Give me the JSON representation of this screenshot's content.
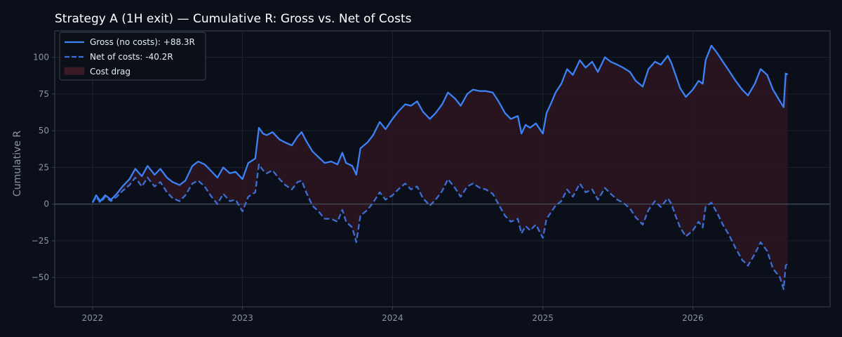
{
  "chart_data": {
    "type": "line",
    "title": "Strategy A (1H exit) — Cumulative R: Gross vs. Net of Costs",
    "xlabel": "",
    "ylabel": "Cumulative R",
    "xlim": [
      "2021-10-01",
      "2026-12-01"
    ],
    "ylim": [
      -70,
      118
    ],
    "grid": true,
    "legend_position": "top-left",
    "x_ticks": [
      "2022-01-01",
      "2023-01-01",
      "2024-01-01",
      "2025-01-01",
      "2026-01-01"
    ],
    "x_tick_labels": [
      "2022",
      "2023",
      "2024",
      "2025",
      "2026"
    ],
    "y_ticks": [
      -50,
      -25,
      0,
      25,
      50,
      75,
      100
    ],
    "y_tick_labels": [
      "−50",
      "−25",
      "0",
      "25",
      "50",
      "75",
      "100"
    ],
    "colors": {
      "background": "#0b0f19",
      "grid": "#1c2333",
      "axis": "#3d4450",
      "zero_line": "#4b5563",
      "gross": "#3b82f6",
      "net": "#3b6fd4",
      "fill": "#2a1520"
    },
    "legend": [
      {
        "key": "gross",
        "label": "Gross (no costs): +88.3R"
      },
      {
        "key": "net",
        "label": "Net of costs: -40.2R"
      },
      {
        "key": "fill",
        "label": "Cost drag"
      }
    ],
    "series": [
      {
        "key": "gross",
        "name": "Gross (no costs): +88.3R",
        "style": "solid",
        "points": [
          [
            "2022-01-01",
            1
          ],
          [
            "2022-01-10",
            6
          ],
          [
            "2022-01-20",
            2
          ],
          [
            "2022-02-01",
            6
          ],
          [
            "2022-02-15",
            3
          ],
          [
            "2022-03-01",
            7
          ],
          [
            "2022-03-15",
            12
          ],
          [
            "2022-04-01",
            17
          ],
          [
            "2022-04-15",
            24
          ],
          [
            "2022-05-01",
            19
          ],
          [
            "2022-05-15",
            26
          ],
          [
            "2022-06-01",
            20
          ],
          [
            "2022-06-15",
            24
          ],
          [
            "2022-07-01",
            18
          ],
          [
            "2022-07-15",
            15
          ],
          [
            "2022-08-01",
            13
          ],
          [
            "2022-08-15",
            16
          ],
          [
            "2022-09-01",
            26
          ],
          [
            "2022-09-15",
            29
          ],
          [
            "2022-10-01",
            27
          ],
          [
            "2022-10-15",
            23
          ],
          [
            "2022-11-01",
            18
          ],
          [
            "2022-11-15",
            25
          ],
          [
            "2022-12-01",
            21
          ],
          [
            "2022-12-15",
            22
          ],
          [
            "2023-01-01",
            17
          ],
          [
            "2023-01-15",
            28
          ],
          [
            "2023-02-01",
            31
          ],
          [
            "2023-02-10",
            52
          ],
          [
            "2023-02-20",
            48
          ],
          [
            "2023-03-01",
            47
          ],
          [
            "2023-03-15",
            49
          ],
          [
            "2023-04-01",
            44
          ],
          [
            "2023-04-15",
            42
          ],
          [
            "2023-05-01",
            40
          ],
          [
            "2023-05-15",
            46
          ],
          [
            "2023-05-25",
            49
          ],
          [
            "2023-06-05",
            43
          ],
          [
            "2023-06-20",
            36
          ],
          [
            "2023-07-05",
            32
          ],
          [
            "2023-07-20",
            28
          ],
          [
            "2023-08-05",
            29
          ],
          [
            "2023-08-20",
            27
          ],
          [
            "2023-09-01",
            35
          ],
          [
            "2023-09-10",
            28
          ],
          [
            "2023-09-25",
            26
          ],
          [
            "2023-10-05",
            20
          ],
          [
            "2023-10-15",
            38
          ],
          [
            "2023-11-01",
            42
          ],
          [
            "2023-11-15",
            47
          ],
          [
            "2023-12-01",
            56
          ],
          [
            "2023-12-15",
            51
          ],
          [
            "2024-01-01",
            58
          ],
          [
            "2024-01-15",
            63
          ],
          [
            "2024-02-01",
            68
          ],
          [
            "2024-02-15",
            67
          ],
          [
            "2024-03-01",
            70
          ],
          [
            "2024-03-15",
            63
          ],
          [
            "2024-04-01",
            58
          ],
          [
            "2024-04-15",
            62
          ],
          [
            "2024-05-01",
            68
          ],
          [
            "2024-05-15",
            76
          ],
          [
            "2024-06-01",
            72
          ],
          [
            "2024-06-15",
            67
          ],
          [
            "2024-07-01",
            75
          ],
          [
            "2024-07-15",
            78
          ],
          [
            "2024-08-01",
            77
          ],
          [
            "2024-08-15",
            77
          ],
          [
            "2024-09-01",
            76
          ],
          [
            "2024-09-15",
            70
          ],
          [
            "2024-10-01",
            62
          ],
          [
            "2024-10-15",
            58
          ],
          [
            "2024-11-01",
            60
          ],
          [
            "2024-11-10",
            48
          ],
          [
            "2024-11-20",
            54
          ],
          [
            "2024-12-01",
            52
          ],
          [
            "2024-12-15",
            55
          ],
          [
            "2025-01-01",
            48
          ],
          [
            "2025-01-10",
            62
          ],
          [
            "2025-01-20",
            68
          ],
          [
            "2025-02-01",
            76
          ],
          [
            "2025-02-15",
            82
          ],
          [
            "2025-03-01",
            92
          ],
          [
            "2025-03-15",
            88
          ],
          [
            "2025-04-01",
            98
          ],
          [
            "2025-04-15",
            93
          ],
          [
            "2025-05-01",
            97
          ],
          [
            "2025-05-15",
            90
          ],
          [
            "2025-06-01",
            100
          ],
          [
            "2025-06-15",
            97
          ],
          [
            "2025-07-01",
            95
          ],
          [
            "2025-07-15",
            93
          ],
          [
            "2025-08-01",
            90
          ],
          [
            "2025-08-15",
            84
          ],
          [
            "2025-09-01",
            80
          ],
          [
            "2025-09-15",
            92
          ],
          [
            "2025-10-01",
            97
          ],
          [
            "2025-10-15",
            95
          ],
          [
            "2025-11-01",
            101
          ],
          [
            "2025-11-10",
            96
          ],
          [
            "2025-11-20",
            88
          ],
          [
            "2025-12-01",
            79
          ],
          [
            "2025-12-15",
            73
          ],
          [
            "2026-01-01",
            78
          ],
          [
            "2026-01-15",
            84
          ],
          [
            "2026-01-25",
            82
          ],
          [
            "2026-02-01",
            98
          ],
          [
            "2026-02-15",
            108
          ],
          [
            "2026-03-01",
            103
          ],
          [
            "2026-03-15",
            97
          ],
          [
            "2026-04-01",
            90
          ],
          [
            "2026-04-15",
            84
          ],
          [
            "2026-05-01",
            78
          ],
          [
            "2026-05-15",
            74
          ],
          [
            "2026-06-01",
            82
          ],
          [
            "2026-06-15",
            92
          ],
          [
            "2026-07-01",
            88
          ],
          [
            "2026-07-15",
            78
          ],
          [
            "2026-08-01",
            70
          ],
          [
            "2026-08-10",
            66
          ],
          [
            "2026-08-15",
            89
          ],
          [
            "2026-08-20",
            88.3
          ]
        ]
      },
      {
        "key": "net",
        "name": "Net of costs: -40.2R",
        "style": "dashed",
        "points": [
          [
            "2022-01-01",
            1
          ],
          [
            "2022-01-10",
            5
          ],
          [
            "2022-01-20",
            1
          ],
          [
            "2022-02-01",
            5
          ],
          [
            "2022-02-15",
            2
          ],
          [
            "2022-03-01",
            5
          ],
          [
            "2022-03-15",
            9
          ],
          [
            "2022-04-01",
            13
          ],
          [
            "2022-04-15",
            18
          ],
          [
            "2022-05-01",
            12
          ],
          [
            "2022-05-15",
            18
          ],
          [
            "2022-06-01",
            12
          ],
          [
            "2022-06-15",
            15
          ],
          [
            "2022-07-01",
            8
          ],
          [
            "2022-07-15",
            4
          ],
          [
            "2022-08-01",
            2
          ],
          [
            "2022-08-15",
            6
          ],
          [
            "2022-09-01",
            14
          ],
          [
            "2022-09-15",
            16
          ],
          [
            "2022-10-01",
            12
          ],
          [
            "2022-10-15",
            6
          ],
          [
            "2022-11-01",
            0
          ],
          [
            "2022-11-15",
            7
          ],
          [
            "2022-12-01",
            2
          ],
          [
            "2022-12-15",
            3
          ],
          [
            "2023-01-01",
            -5
          ],
          [
            "2023-01-15",
            5
          ],
          [
            "2023-02-01",
            8
          ],
          [
            "2023-02-10",
            27
          ],
          [
            "2023-02-20",
            23
          ],
          [
            "2023-03-01",
            21
          ],
          [
            "2023-03-15",
            23
          ],
          [
            "2023-04-01",
            17
          ],
          [
            "2023-04-15",
            13
          ],
          [
            "2023-05-01",
            10
          ],
          [
            "2023-05-15",
            15
          ],
          [
            "2023-05-25",
            16
          ],
          [
            "2023-06-05",
            8
          ],
          [
            "2023-06-20",
            -1
          ],
          [
            "2023-07-05",
            -5
          ],
          [
            "2023-07-20",
            -10
          ],
          [
            "2023-08-05",
            -10
          ],
          [
            "2023-08-20",
            -12
          ],
          [
            "2023-09-01",
            -4
          ],
          [
            "2023-09-10",
            -12
          ],
          [
            "2023-09-25",
            -16
          ],
          [
            "2023-10-05",
            -26
          ],
          [
            "2023-10-15",
            -8
          ],
          [
            "2023-11-01",
            -4
          ],
          [
            "2023-11-15",
            1
          ],
          [
            "2023-12-01",
            8
          ],
          [
            "2023-12-15",
            3
          ],
          [
            "2024-01-01",
            6
          ],
          [
            "2024-01-15",
            10
          ],
          [
            "2024-02-01",
            14
          ],
          [
            "2024-02-15",
            10
          ],
          [
            "2024-03-01",
            12
          ],
          [
            "2024-03-15",
            4
          ],
          [
            "2024-04-01",
            -1
          ],
          [
            "2024-04-15",
            3
          ],
          [
            "2024-05-01",
            9
          ],
          [
            "2024-05-15",
            17
          ],
          [
            "2024-06-01",
            11
          ],
          [
            "2024-06-15",
            5
          ],
          [
            "2024-07-01",
            12
          ],
          [
            "2024-07-15",
            14
          ],
          [
            "2024-08-01",
            11
          ],
          [
            "2024-08-15",
            10
          ],
          [
            "2024-09-01",
            7
          ],
          [
            "2024-09-15",
            0
          ],
          [
            "2024-10-01",
            -8
          ],
          [
            "2024-10-15",
            -12
          ],
          [
            "2024-11-01",
            -10
          ],
          [
            "2024-11-10",
            -20
          ],
          [
            "2024-11-20",
            -15
          ],
          [
            "2024-12-01",
            -18
          ],
          [
            "2024-12-15",
            -14
          ],
          [
            "2025-01-01",
            -23
          ],
          [
            "2025-01-10",
            -10
          ],
          [
            "2025-01-20",
            -6
          ],
          [
            "2025-02-01",
            -1
          ],
          [
            "2025-02-15",
            2
          ],
          [
            "2025-03-01",
            10
          ],
          [
            "2025-03-15",
            5
          ],
          [
            "2025-04-01",
            14
          ],
          [
            "2025-04-15",
            8
          ],
          [
            "2025-05-01",
            10
          ],
          [
            "2025-05-15",
            3
          ],
          [
            "2025-06-01",
            11
          ],
          [
            "2025-06-15",
            7
          ],
          [
            "2025-07-01",
            3
          ],
          [
            "2025-07-15",
            1
          ],
          [
            "2025-08-01",
            -3
          ],
          [
            "2025-08-15",
            -9
          ],
          [
            "2025-09-01",
            -14
          ],
          [
            "2025-09-15",
            -4
          ],
          [
            "2025-10-01",
            2
          ],
          [
            "2025-10-15",
            -2
          ],
          [
            "2025-11-01",
            4
          ],
          [
            "2025-11-10",
            0
          ],
          [
            "2025-11-20",
            -8
          ],
          [
            "2025-12-01",
            -16
          ],
          [
            "2025-12-15",
            -22
          ],
          [
            "2026-01-01",
            -18
          ],
          [
            "2026-01-15",
            -12
          ],
          [
            "2026-01-25",
            -16
          ],
          [
            "2026-02-01",
            -2
          ],
          [
            "2026-02-15",
            1
          ],
          [
            "2026-03-01",
            -6
          ],
          [
            "2026-03-15",
            -14
          ],
          [
            "2026-04-01",
            -22
          ],
          [
            "2026-04-15",
            -30
          ],
          [
            "2026-05-01",
            -38
          ],
          [
            "2026-05-15",
            -42
          ],
          [
            "2026-06-01",
            -34
          ],
          [
            "2026-06-15",
            -26
          ],
          [
            "2026-07-01",
            -32
          ],
          [
            "2026-07-15",
            -44
          ],
          [
            "2026-08-01",
            -50
          ],
          [
            "2026-08-10",
            -58
          ],
          [
            "2026-08-15",
            -42
          ],
          [
            "2026-08-20",
            -40.2
          ]
        ]
      }
    ]
  }
}
